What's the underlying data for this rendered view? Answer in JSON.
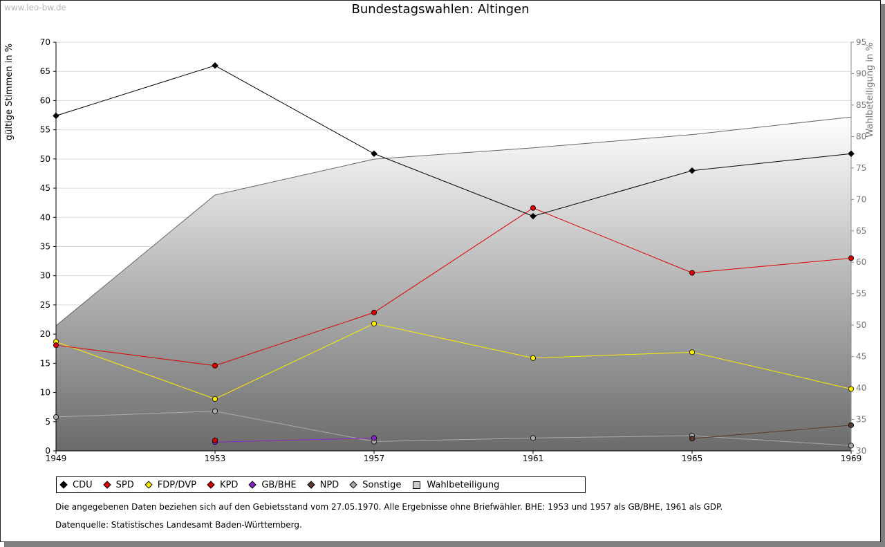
{
  "watermark": "www.leo-bw.de",
  "chart_data": {
    "type": "line",
    "title": "Bundestagswahlen: Altingen",
    "x": [
      "1949",
      "1953",
      "1957",
      "1961",
      "1965",
      "1969"
    ],
    "ylabel": "gültige Stimmen in %",
    "y2label": "Wahlbeteiligung in %",
    "ylim": [
      0,
      70
    ],
    "y2lim": [
      30,
      95
    ],
    "yticks": [
      0,
      5,
      10,
      15,
      20,
      25,
      30,
      35,
      40,
      45,
      50,
      55,
      60,
      65,
      70
    ],
    "y2ticks": [
      30,
      35,
      40,
      45,
      50,
      55,
      60,
      65,
      70,
      75,
      80,
      85,
      90,
      95
    ],
    "grid": true,
    "series": [
      {
        "name": "CDU",
        "color": "#000000",
        "values": [
          57.4,
          66.0,
          50.9,
          40.2,
          48.0,
          50.9
        ]
      },
      {
        "name": "SPD",
        "color": "#dd0000",
        "values": [
          18.1,
          14.6,
          23.7,
          41.6,
          30.5,
          33.0
        ]
      },
      {
        "name": "FDP/DVP",
        "color": "#ffee00",
        "values": [
          18.7,
          8.9,
          21.8,
          15.9,
          16.9,
          10.6
        ]
      },
      {
        "name": "KPD",
        "color": "#cc0000",
        "values": [
          null,
          1.8,
          null,
          null,
          null,
          null
        ]
      },
      {
        "name": "GB/BHE",
        "color": "#8822cc",
        "values": [
          null,
          1.5,
          2.2,
          null,
          null,
          null
        ]
      },
      {
        "name": "NPD",
        "color": "#5a3a2a",
        "values": [
          null,
          null,
          null,
          null,
          2.1,
          4.4
        ]
      },
      {
        "name": "Sonstige",
        "color": "#aaaaaa",
        "values": [
          5.8,
          6.8,
          1.6,
          2.2,
          2.6,
          0.9
        ]
      }
    ],
    "area_series": {
      "name": "Wahlbeteiligung",
      "axis": "right",
      "values": [
        49.9,
        70.7,
        76.4,
        78.2,
        80.3,
        83.1
      ]
    },
    "legend_position": "bottom"
  },
  "footnote": "Die angegebenen Daten beziehen sich auf den Gebietsstand vom 27.05.1970. Alle Ergebnisse ohne Briefwähler. BHE: 1953 und 1957 als GB/BHE, 1961 als GDP.",
  "source": "Datenquelle: Statistisches Landesamt Baden-Württemberg."
}
